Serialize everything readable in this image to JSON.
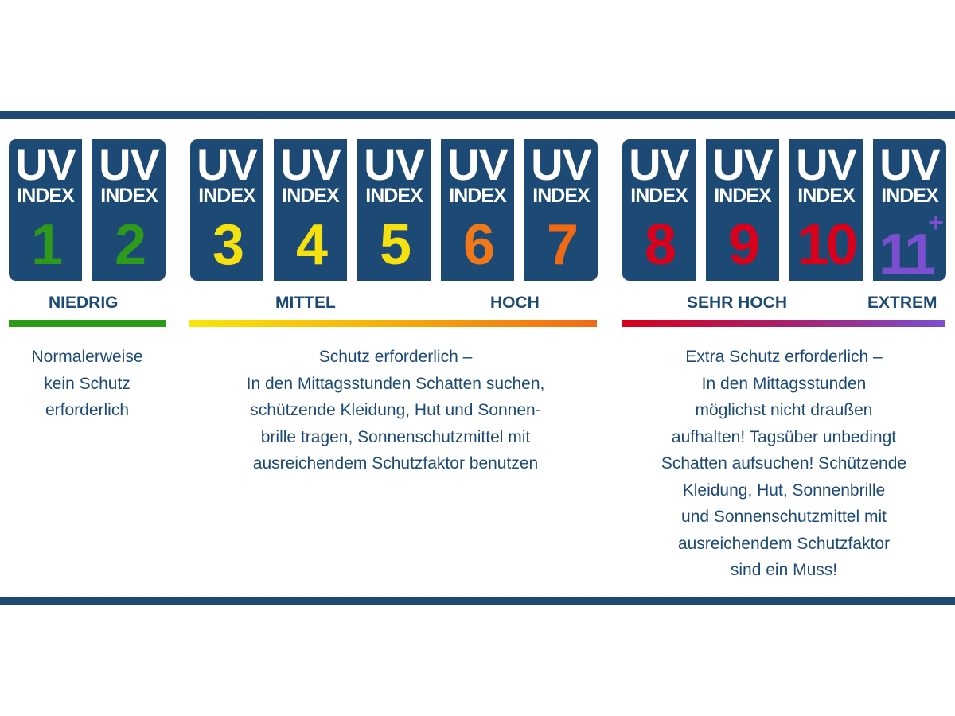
{
  "card": {
    "uv": "UV",
    "index": "INDEX"
  },
  "cards": [
    {
      "value": "1",
      "color": "#2e9a1a"
    },
    {
      "value": "2",
      "color": "#2e9a1a"
    },
    {
      "value": "3",
      "color": "#f5e010"
    },
    {
      "value": "4",
      "color": "#f5e010"
    },
    {
      "value": "5",
      "color": "#f5e010"
    },
    {
      "value": "6",
      "color": "#f07818"
    },
    {
      "value": "7",
      "color": "#f06a14"
    },
    {
      "value": "8",
      "color": "#d9001b"
    },
    {
      "value": "9",
      "color": "#d9001b"
    },
    {
      "value": "10",
      "color": "#d9001b"
    },
    {
      "value": "11",
      "sup": "+",
      "color": "#7a4fd0"
    }
  ],
  "levels": {
    "low": "NIEDRIG",
    "medium": "MITTEL",
    "high": "HOCH",
    "very_high": "SEHR HOCH",
    "extreme": "EXTREM"
  },
  "colors": {
    "navy": "#1d4a75",
    "green": "#2e9a1a",
    "yellow": "#f5e010",
    "orange": "#f06a14",
    "red": "#d9001b",
    "purple": "#7a4fd0"
  },
  "descriptions": {
    "low": "Normalerweise\nkein Schutz\nerforderlich",
    "medium": "Schutz erforderlich –\nIn den Mittagsstunden Schatten suchen,\nschützende Kleidung, Hut und Sonnen-\nbrille tragen, Sonnenschutzmittel mit\nausreichendem Schutzfaktor benutzen",
    "high": "Extra Schutz erforderlich –\nIn den Mittagsstunden\nmöglichst nicht draußen\naufhalten! Tagsüber unbedingt\nSchatten aufsuchen! Schützende\nKleidung, Hut, Sonnenbrille\nund Sonnenschutzmittel mit\nausreichendem Schutzfaktor\nsind ein Muss!"
  }
}
